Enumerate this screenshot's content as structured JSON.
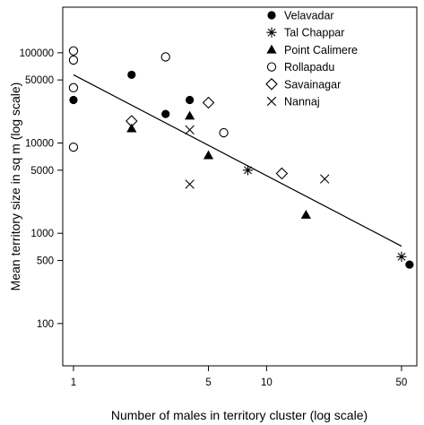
{
  "chart_data": {
    "type": "scatter",
    "xlabel": "Number of males in territory cluster (log scale)",
    "ylabel": "Mean territory size in sq m (log scale)",
    "x_scale": "log",
    "y_scale": "log",
    "xlim": [
      0.88,
      60
    ],
    "ylim": [
      34,
      320000
    ],
    "x_ticks": [
      1,
      5,
      10,
      50
    ],
    "y_ticks": [
      100,
      500,
      1000,
      5000,
      10000,
      50000,
      100000
    ],
    "grid": false,
    "legend_position": "top-right",
    "series": [
      {
        "name": "Velavadar",
        "marker": "filled-circle",
        "points": [
          [
            1,
            30000
          ],
          [
            2,
            57000
          ],
          [
            3,
            21000
          ],
          [
            4,
            30000
          ],
          [
            55,
            450
          ]
        ]
      },
      {
        "name": "Tal Chappar",
        "marker": "asterisk",
        "points": [
          [
            8,
            5000
          ],
          [
            50,
            550
          ]
        ]
      },
      {
        "name": "Point Calimere",
        "marker": "filled-triangle",
        "points": [
          [
            2,
            14500
          ],
          [
            4,
            20000
          ],
          [
            5,
            7300
          ],
          [
            16,
            1600
          ]
        ]
      },
      {
        "name": "Rollapadu",
        "marker": "open-circle",
        "points": [
          [
            1,
            105000
          ],
          [
            1,
            83000
          ],
          [
            1,
            41000
          ],
          [
            1,
            9000
          ],
          [
            3,
            90000
          ],
          [
            6,
            13000
          ]
        ]
      },
      {
        "name": "Savainagar",
        "marker": "open-diamond",
        "points": [
          [
            2,
            17500
          ],
          [
            5,
            28000
          ],
          [
            12,
            4600
          ]
        ]
      },
      {
        "name": "Nannaj",
        "marker": "cross",
        "points": [
          [
            4,
            14000
          ],
          [
            4,
            3500
          ],
          [
            20,
            4000
          ]
        ]
      }
    ],
    "trend_line": {
      "x": [
        1,
        50
      ],
      "y": [
        57000,
        720
      ]
    }
  }
}
